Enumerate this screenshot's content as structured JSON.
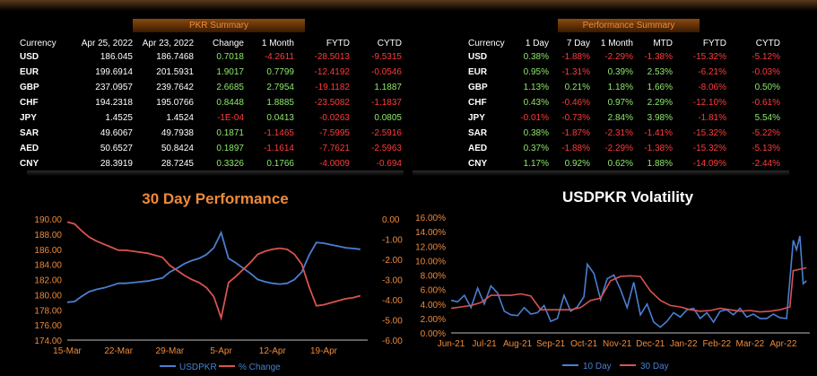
{
  "pkr_summary": {
    "title": "PKR Summary",
    "headers": [
      "Currency",
      "Apr 25, 2022",
      "Apr 23, 2022",
      "Change",
      "1 Month",
      "FYTD",
      "CYTD"
    ],
    "rows": [
      {
        "currency": "USD",
        "apr25": "186.045",
        "apr23": "186.7468",
        "change": "0.7018",
        "m1": "-4.2611",
        "fytd": "-28.5013",
        "cytd": "-9.5315"
      },
      {
        "currency": "EUR",
        "apr25": "199.6914",
        "apr23": "201.5931",
        "change": "1.9017",
        "m1": "0.7799",
        "fytd": "-12.4192",
        "cytd": "-0.0546"
      },
      {
        "currency": "GBP",
        "apr25": "237.0957",
        "apr23": "239.7642",
        "change": "2.6685",
        "m1": "2.7954",
        "fytd": "-19.1182",
        "cytd": "1.1887"
      },
      {
        "currency": "CHF",
        "apr25": "194.2318",
        "apr23": "195.0766",
        "change": "0.8448",
        "m1": "1.8885",
        "fytd": "-23.5082",
        "cytd": "-1.1837"
      },
      {
        "currency": "JPY",
        "apr25": "1.4525",
        "apr23": "1.4524",
        "change": "-1E-04",
        "m1": "0.0413",
        "fytd": "-0.0263",
        "cytd": "0.0805"
      },
      {
        "currency": "SAR",
        "apr25": "49.6067",
        "apr23": "49.7938",
        "change": "0.1871",
        "m1": "-1.1465",
        "fytd": "-7.5995",
        "cytd": "-2.5916"
      },
      {
        "currency": "AED",
        "apr25": "50.6527",
        "apr23": "50.8424",
        "change": "0.1897",
        "m1": "-1.1614",
        "fytd": "-7.7621",
        "cytd": "-2.5963"
      },
      {
        "currency": "CNY",
        "apr25": "28.3919",
        "apr23": "28.7245",
        "change": "0.3326",
        "m1": "0.1766",
        "fytd": "-4.0009",
        "cytd": "-0.694"
      }
    ]
  },
  "performance_summary": {
    "title": "Performance Summary",
    "headers": [
      "Currency",
      "1 Day",
      "7 Day",
      "1 Month",
      "MTD",
      "FYTD",
      "CYTD"
    ],
    "rows": [
      {
        "currency": "USD",
        "d1": "0.38%",
        "d7": "-1.88%",
        "m1": "-2.29%",
        "mtd": "-1.38%",
        "fytd": "-15.32%",
        "cytd": "-5.12%"
      },
      {
        "currency": "EUR",
        "d1": "0.95%",
        "d7": "-1.31%",
        "m1": "0.39%",
        "mtd": "2.53%",
        "fytd": "-6.21%",
        "cytd": "-0.03%"
      },
      {
        "currency": "GBP",
        "d1": "1.13%",
        "d7": "0.21%",
        "m1": "1.18%",
        "mtd": "1.66%",
        "fytd": "-8.06%",
        "cytd": "0.50%"
      },
      {
        "currency": "CHF",
        "d1": "0.43%",
        "d7": "-0.46%",
        "m1": "0.97%",
        "mtd": "2.29%",
        "fytd": "-12.10%",
        "cytd": "-0.61%"
      },
      {
        "currency": "JPY",
        "d1": "-0.01%",
        "d7": "-0.73%",
        "m1": "2.84%",
        "mtd": "3.98%",
        "fytd": "-1.81%",
        "cytd": "5.54%"
      },
      {
        "currency": "SAR",
        "d1": "0.38%",
        "d7": "-1.87%",
        "m1": "-2.31%",
        "mtd": "-1.41%",
        "fytd": "-15.32%",
        "cytd": "-5.22%"
      },
      {
        "currency": "AED",
        "d1": "0.37%",
        "d7": "-1.88%",
        "m1": "-2.29%",
        "mtd": "-1.38%",
        "fytd": "-15.32%",
        "cytd": "-5.13%"
      },
      {
        "currency": "CNY",
        "d1": "1.17%",
        "d7": "0.92%",
        "m1": "0.62%",
        "mtd": "1.88%",
        "fytd": "-14.09%",
        "cytd": "-2.44%"
      }
    ]
  },
  "colors": {
    "positive": "#8ee86a",
    "negative": "#ff3b3b",
    "accent": "#f08a3a",
    "series_blue": "#4a7fd0",
    "series_red": "#d9534f"
  },
  "chart_data": [
    {
      "type": "line",
      "title": "30 Day Performance",
      "x_ticks": [
        "15-Mar",
        "22-Mar",
        "29-Mar",
        "5-Apr",
        "12-Apr",
        "19-Apr"
      ],
      "x_range": [
        0,
        41
      ],
      "x_tick_positions": [
        0,
        7,
        14,
        21,
        28,
        35
      ],
      "ylim_left": [
        174,
        190
      ],
      "yticks_left": [
        "190.00",
        "188.00",
        "186.00",
        "184.00",
        "182.00",
        "180.00",
        "178.00",
        "176.00",
        "174.00"
      ],
      "ylim_right": [
        -6,
        0
      ],
      "yticks_right": [
        "0.00",
        "-1.00",
        "-2.00",
        "-3.00",
        "-4.00",
        "-5.00",
        "-6.00"
      ],
      "legend_position": "bottom",
      "series": [
        {
          "name": "USDPKR",
          "axis": "left",
          "color": "#4a7fd0",
          "x": [
            0,
            1,
            2,
            3,
            4,
            5,
            6,
            7,
            8,
            9,
            10,
            11,
            12,
            13,
            14,
            15,
            16,
            17,
            18,
            19,
            20,
            21,
            22,
            23,
            24,
            25,
            26,
            27,
            28,
            29,
            30,
            31,
            32,
            33,
            34,
            35,
            36,
            37,
            38,
            39,
            40
          ],
          "y": [
            179.0,
            179.1,
            179.8,
            180.4,
            180.7,
            180.9,
            181.2,
            181.5,
            181.5,
            181.6,
            181.7,
            181.8,
            182.0,
            182.2,
            183.0,
            183.5,
            184.1,
            184.5,
            184.8,
            185.3,
            186.2,
            188.2,
            184.8,
            184.2,
            183.5,
            182.8,
            182.0,
            181.7,
            181.5,
            181.4,
            181.5,
            182.0,
            183.0,
            185.2,
            186.9,
            186.8,
            186.6,
            186.4,
            186.2,
            186.1,
            186.0
          ]
        },
        {
          "name": "% Change",
          "axis": "right",
          "color": "#d9534f",
          "x": [
            0,
            1,
            2,
            3,
            4,
            5,
            6,
            7,
            8,
            9,
            10,
            11,
            12,
            13,
            14,
            15,
            16,
            17,
            18,
            19,
            20,
            21,
            22,
            23,
            24,
            25,
            26,
            27,
            28,
            29,
            30,
            31,
            32,
            33,
            34,
            35,
            36,
            37,
            38,
            39,
            40
          ],
          "y": [
            -0.15,
            -0.25,
            -0.6,
            -0.9,
            -1.1,
            -1.25,
            -1.4,
            -1.55,
            -1.55,
            -1.6,
            -1.65,
            -1.7,
            -1.8,
            -1.9,
            -2.3,
            -2.55,
            -2.8,
            -3.0,
            -3.15,
            -3.4,
            -3.85,
            -4.9,
            -3.15,
            -2.85,
            -2.5,
            -2.15,
            -1.75,
            -1.6,
            -1.5,
            -1.45,
            -1.5,
            -1.75,
            -2.25,
            -3.35,
            -4.3,
            -4.25,
            -4.15,
            -4.05,
            -3.95,
            -3.9,
            -3.8
          ]
        }
      ]
    },
    {
      "type": "line",
      "title": "USDPKR Volatility",
      "x_ticks": [
        "Jun-21",
        "Jul-21",
        "Aug-21",
        "Sep-21",
        "Oct-21",
        "Nov-21",
        "Dec-21",
        "Jan-22",
        "Feb-22",
        "Mar-22",
        "Apr-22"
      ],
      "x_range": [
        0,
        10.8
      ],
      "x_tick_positions": [
        0,
        1,
        2,
        3,
        4,
        5,
        6,
        7,
        8,
        9,
        10
      ],
      "ylim": [
        0,
        16
      ],
      "yticks": [
        "16.00%",
        "14.00%",
        "12.00%",
        "10.00%",
        "8.00%",
        "6.00%",
        "4.00%",
        "2.00%",
        "0.00%"
      ],
      "legend_position": "bottom",
      "series": [
        {
          "name": "10 Day",
          "color": "#4a7fd0",
          "x": [
            0,
            0.2,
            0.4,
            0.6,
            0.8,
            1.0,
            1.2,
            1.4,
            1.6,
            1.8,
            2.0,
            2.2,
            2.4,
            2.6,
            2.8,
            3.0,
            3.2,
            3.4,
            3.6,
            3.8,
            4.0,
            4.1,
            4.3,
            4.5,
            4.7,
            4.9,
            5.1,
            5.3,
            5.5,
            5.7,
            5.9,
            6.1,
            6.3,
            6.5,
            6.7,
            6.9,
            7.1,
            7.3,
            7.5,
            7.7,
            7.9,
            8.1,
            8.3,
            8.5,
            8.7,
            8.9,
            9.1,
            9.3,
            9.5,
            9.7,
            9.9,
            10.1,
            10.3,
            10.4,
            10.5,
            10.6,
            10.7
          ],
          "y": [
            4.5,
            4.3,
            5.2,
            3.5,
            6.2,
            4.0,
            6.5,
            5.5,
            3.0,
            2.5,
            2.4,
            3.5,
            2.6,
            2.8,
            3.8,
            1.6,
            2.0,
            5.2,
            3.0,
            3.6,
            5.0,
            9.5,
            8.2,
            4.6,
            7.5,
            8.0,
            6.0,
            3.5,
            7.0,
            2.5,
            4.0,
            1.5,
            0.8,
            1.6,
            2.8,
            2.2,
            3.2,
            3.4,
            2.0,
            2.8,
            1.5,
            3.0,
            3.2,
            2.5,
            3.4,
            2.2,
            2.6,
            2.0,
            2.0,
            2.6,
            2.1,
            2.0,
            12.8,
            11.5,
            13.4,
            6.8,
            7.2
          ]
        },
        {
          "name": "30 Day",
          "color": "#d9534f",
          "x": [
            0,
            0.3,
            0.6,
            0.9,
            1.2,
            1.5,
            1.8,
            2.1,
            2.4,
            2.7,
            3.0,
            3.3,
            3.6,
            3.9,
            4.2,
            4.5,
            4.8,
            5.1,
            5.4,
            5.7,
            6.0,
            6.3,
            6.6,
            6.9,
            7.2,
            7.5,
            7.8,
            8.1,
            8.4,
            8.7,
            9.0,
            9.3,
            9.6,
            9.9,
            10.2,
            10.3,
            10.5,
            10.7
          ],
          "y": [
            3.4,
            3.6,
            3.8,
            4.2,
            5.2,
            5.2,
            5.2,
            5.4,
            5.1,
            3.2,
            3.2,
            3.2,
            3.2,
            3.5,
            4.5,
            4.8,
            7.2,
            7.8,
            7.9,
            7.8,
            5.8,
            4.5,
            3.8,
            3.6,
            3.2,
            3.0,
            3.1,
            3.4,
            3.2,
            3.0,
            3.1,
            2.9,
            3.0,
            3.2,
            3.6,
            8.6,
            8.8,
            9.0
          ]
        }
      ]
    }
  ]
}
